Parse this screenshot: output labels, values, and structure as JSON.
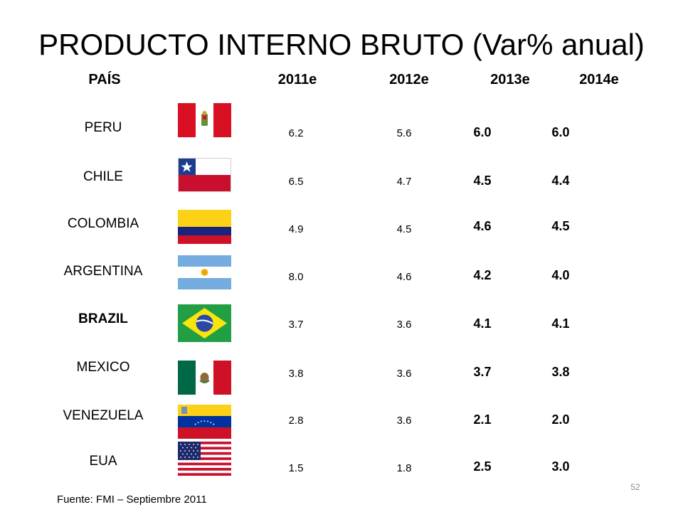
{
  "title": "PRODUCTO INTERNO BRUTO (Var% anual)",
  "headers": {
    "country": "PAÍS",
    "y2011": "2011e",
    "y2012": "2012e",
    "y2013": "2013e",
    "y2014": "2014e"
  },
  "rows": [
    {
      "country": "PERU",
      "flag": "peru-flag-icon",
      "v2011": "6.2",
      "v2012": "5.6",
      "v2013": "6.0",
      "v2014": "6.0"
    },
    {
      "country": "CHILE",
      "flag": "chile-flag-icon",
      "v2011": "6.5",
      "v2012": "4.7",
      "v2013": "4.5",
      "v2014": "4.4"
    },
    {
      "country": "COLOMBIA",
      "flag": "colombia-flag-icon",
      "v2011": "4.9",
      "v2012": "4.5",
      "v2013": "4.6",
      "v2014": "4.5"
    },
    {
      "country": "ARGENTINA",
      "flag": "argentina-flag-icon",
      "v2011": "8.0",
      "v2012": "4.6",
      "v2013": "4.2",
      "v2014": "4.0"
    },
    {
      "country": "BRAZIL",
      "flag": "brazil-flag-icon",
      "v2011": "3.7",
      "v2012": "3.6",
      "v2013": "4.1",
      "v2014": "4.1"
    },
    {
      "country": "MEXICO",
      "flag": "mexico-flag-icon",
      "v2011": "3.8",
      "v2012": "3.6",
      "v2013": "3.7",
      "v2014": "3.8"
    },
    {
      "country": "VENEZUELA",
      "flag": "venezuela-flag-icon",
      "v2011": "2.8",
      "v2012": "3.6",
      "v2013": "2.1",
      "v2014": "2.0"
    },
    {
      "country": "EUA",
      "flag": "usa-flag-icon",
      "v2011": "1.5",
      "v2012": "1.8",
      "v2013": "2.5",
      "v2014": "3.0"
    }
  ],
  "source": "Fuente: FMI – Septiembre 2011",
  "page_number": "52"
}
